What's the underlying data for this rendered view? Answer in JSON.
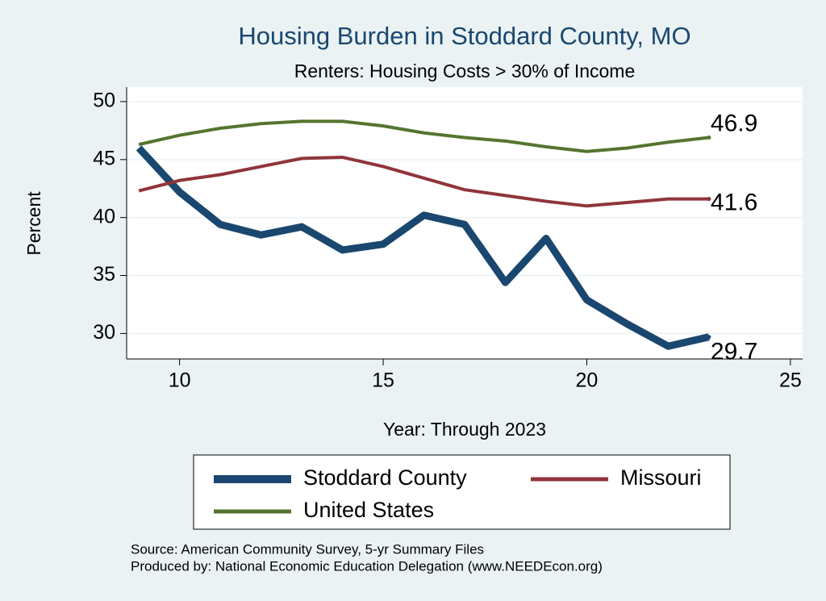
{
  "chart_data": {
    "type": "line",
    "title": "Housing Burden in Stoddard County, MO",
    "subtitle": "Renters: Housing Costs > 30% of Income",
    "x_label": "Year: Through 2023",
    "y_label": "Percent",
    "notes": [
      "Source: American Community Survey, 5-yr Summary Files",
      "Produced by: National Economic Education Delegation (www.NEEDEcon.org)"
    ],
    "x": [
      9,
      10,
      11,
      12,
      13,
      14,
      15,
      16,
      17,
      18,
      19,
      20,
      21,
      22,
      23
    ],
    "series": [
      {
        "name": "Stoddard County",
        "color": "#1a476f",
        "values": [
          46.0,
          42.2,
          39.4,
          38.5,
          39.2,
          37.2,
          37.7,
          40.2,
          39.4,
          34.4,
          38.2,
          32.9,
          30.8,
          28.9,
          29.7
        ]
      },
      {
        "name": "Missouri",
        "color": "#90353b",
        "values": [
          42.3,
          43.2,
          43.7,
          44.4,
          45.1,
          45.2,
          44.4,
          43.4,
          42.4,
          41.9,
          41.4,
          41.0,
          41.3,
          41.6,
          41.6
        ]
      },
      {
        "name": "United States",
        "color": "#55752f",
        "values": [
          46.3,
          47.1,
          47.7,
          48.1,
          48.3,
          48.3,
          47.9,
          47.3,
          46.9,
          46.6,
          46.1,
          45.7,
          46.0,
          46.5,
          46.9
        ]
      }
    ],
    "xlim": [
      8.7,
      25.3
    ],
    "xticks": [
      10,
      15,
      20,
      25
    ],
    "ylim": [
      27.8,
      51.25
    ],
    "yticks": [
      30,
      35,
      40,
      45,
      50
    ],
    "grid": true,
    "legend": "bottom"
  }
}
